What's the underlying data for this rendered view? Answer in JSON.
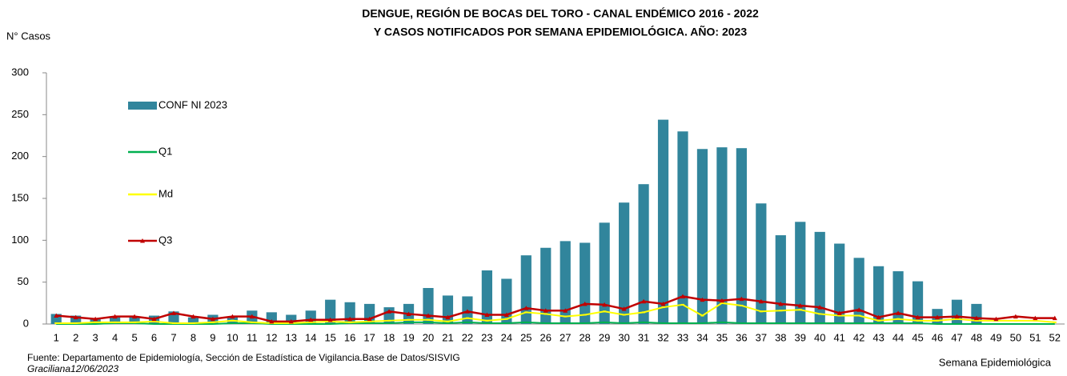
{
  "chart_data": {
    "type": "bar",
    "title": [
      "DENGUE, REGIÓN DE BOCAS DEL TORO - CANAL ENDÉMICO 2016 - 2022",
      "Y CASOS NOTIFICADOS POR SEMANA EPIDEMIOLÓGICA. AÑO: 2023"
    ],
    "y_label": "N° Casos",
    "x_label": "Semana Epidemiológica",
    "footer": [
      "Fuente: Departamento de Epidemiología, Sección de Estadística de Vigilancia.Base de Datos/SISVIG",
      "Graciliana12/06/2023"
    ],
    "categories": [
      1,
      2,
      3,
      4,
      5,
      6,
      7,
      8,
      9,
      10,
      11,
      12,
      13,
      14,
      15,
      16,
      17,
      18,
      19,
      20,
      21,
      22,
      23,
      24,
      25,
      26,
      27,
      28,
      29,
      30,
      31,
      32,
      33,
      34,
      35,
      36,
      37,
      38,
      39,
      40,
      41,
      42,
      43,
      44,
      45,
      46,
      47,
      48,
      49,
      50,
      51,
      52
    ],
    "ylim": [
      0,
      300
    ],
    "yticks": [
      0,
      50,
      100,
      150,
      200,
      250,
      300
    ],
    "grid": false,
    "legend": "left",
    "series": [
      {
        "name": "CONF NI 2023",
        "type": "bar",
        "color": "#31859c",
        "values": [
          12,
          10,
          7,
          8,
          9,
          10,
          15,
          8,
          11,
          9,
          16,
          14,
          11,
          16,
          29,
          26,
          24,
          20,
          24,
          43,
          34,
          33,
          64,
          54,
          82,
          91,
          99,
          97,
          121,
          145,
          167,
          244,
          230,
          209,
          211,
          210,
          144,
          106,
          122,
          110,
          96,
          79,
          69,
          63,
          51,
          18,
          29,
          24,
          0,
          0,
          0,
          0
        ]
      },
      {
        "name": "Q1",
        "type": "line",
        "color": "#00b050",
        "values": [
          0,
          0,
          0,
          1,
          1,
          0,
          0,
          0,
          0,
          1,
          1,
          0,
          0,
          0,
          0,
          1,
          1,
          1,
          2,
          2,
          1,
          2,
          1,
          1,
          2,
          1,
          1,
          1,
          2,
          1,
          2,
          1,
          1,
          1,
          2,
          1,
          1,
          1,
          1,
          1,
          1,
          1,
          1,
          1,
          1,
          0,
          0,
          0,
          0,
          0,
          0,
          0
        ]
      },
      {
        "name": "Md",
        "type": "line",
        "color": "#ffff00",
        "values": [
          1,
          1,
          2,
          2,
          2,
          3,
          1,
          1,
          2,
          4,
          2,
          1,
          1,
          2,
          3,
          2,
          3,
          4,
          5,
          5,
          3,
          7,
          4,
          6,
          14,
          12,
          9,
          11,
          15,
          11,
          14,
          20,
          23,
          10,
          25,
          22,
          15,
          16,
          17,
          12,
          10,
          10,
          4,
          6,
          4,
          4,
          6,
          4,
          4,
          4,
          4,
          2
        ]
      },
      {
        "name": "Q3",
        "type": "line",
        "color": "#c00000",
        "values": [
          10,
          8,
          6,
          9,
          9,
          6,
          13,
          9,
          6,
          9,
          9,
          3,
          3,
          5,
          5,
          6,
          6,
          15,
          12,
          10,
          8,
          15,
          11,
          11,
          19,
          16,
          16,
          24,
          23,
          18,
          27,
          24,
          33,
          29,
          28,
          30,
          27,
          24,
          22,
          20,
          13,
          17,
          8,
          13,
          8,
          8,
          9,
          7,
          6,
          9,
          7,
          7
        ]
      }
    ]
  }
}
